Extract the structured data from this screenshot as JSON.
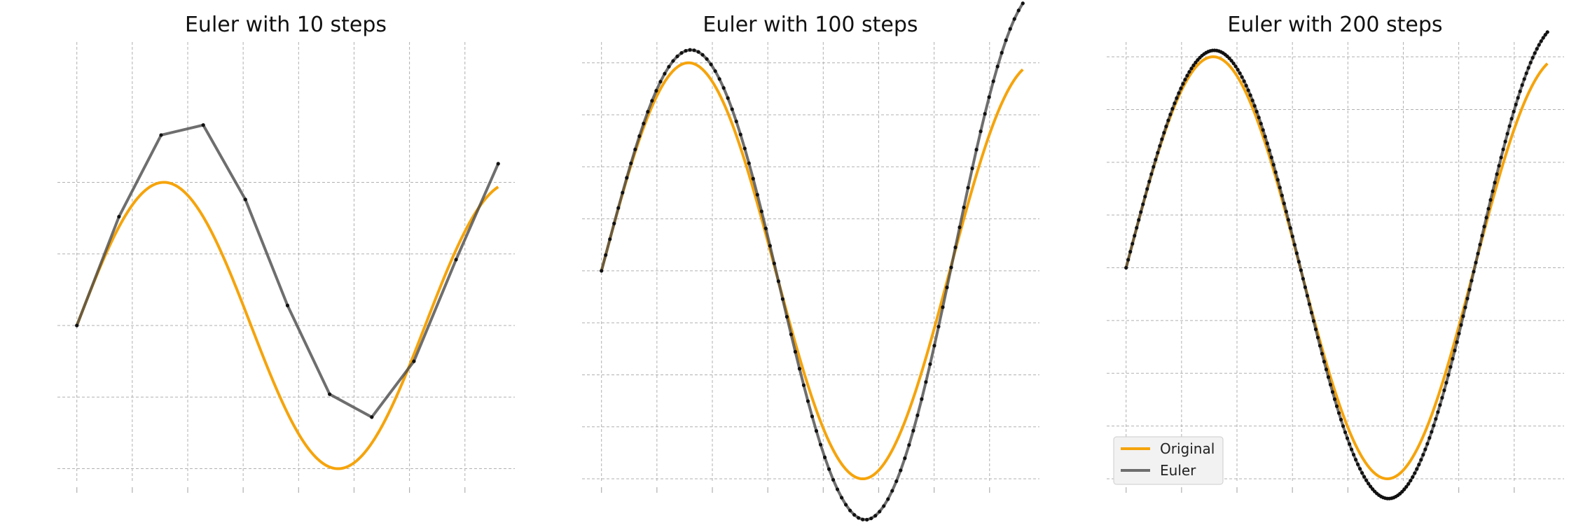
{
  "chart_data": [
    {
      "type": "line",
      "title": "Euler with 10 steps",
      "xlabel": "",
      "ylabel": "",
      "xlim": [
        -0.35,
        7.9
      ],
      "ylim": [
        -1.1,
        1.98
      ],
      "grid": true,
      "series": [
        {
          "name": "Original",
          "color": "#f5a40c",
          "function": "sin",
          "x_range": [
            0,
            7.6
          ]
        },
        {
          "name": "Euler",
          "color": "#6e6e6e",
          "markers": true,
          "x": [
            0,
            0.76,
            1.52,
            2.28,
            3.04,
            3.8,
            4.56,
            5.32,
            6.08,
            6.84,
            7.6
          ],
          "y": [
            0,
            0.76,
            1.33,
            1.4,
            0.88,
            0.14,
            -0.48,
            -0.64,
            -0.25,
            0.46,
            1.13
          ]
        }
      ]
    },
    {
      "type": "line",
      "title": "Euler with 100 steps",
      "xlabel": "",
      "ylabel": "",
      "xlim": [
        -0.35,
        7.9
      ],
      "ylim": [
        -1.02,
        1.1
      ],
      "grid": true,
      "series": [
        {
          "name": "Original",
          "color": "#f5a40c",
          "function": "sin",
          "x_range": [
            0,
            7.6
          ]
        },
        {
          "name": "Euler",
          "color": "#6e6e6e",
          "markers": true,
          "steps": 100,
          "x_range": [
            0,
            7.6
          ]
        }
      ]
    },
    {
      "type": "line",
      "title": "Euler with 200 steps",
      "xlabel": "",
      "ylabel": "",
      "xlim": [
        -0.35,
        7.9
      ],
      "ylim": [
        -1.02,
        1.07
      ],
      "grid": true,
      "legend": "lower-left",
      "legend_entries": [
        "Original",
        "Euler"
      ],
      "series": [
        {
          "name": "Original",
          "color": "#f5a40c",
          "function": "sin",
          "x_range": [
            0,
            7.6
          ]
        },
        {
          "name": "Euler",
          "color": "#6e6e6e",
          "markers": true,
          "steps": 200,
          "x_range": [
            0,
            7.6
          ]
        }
      ]
    }
  ]
}
